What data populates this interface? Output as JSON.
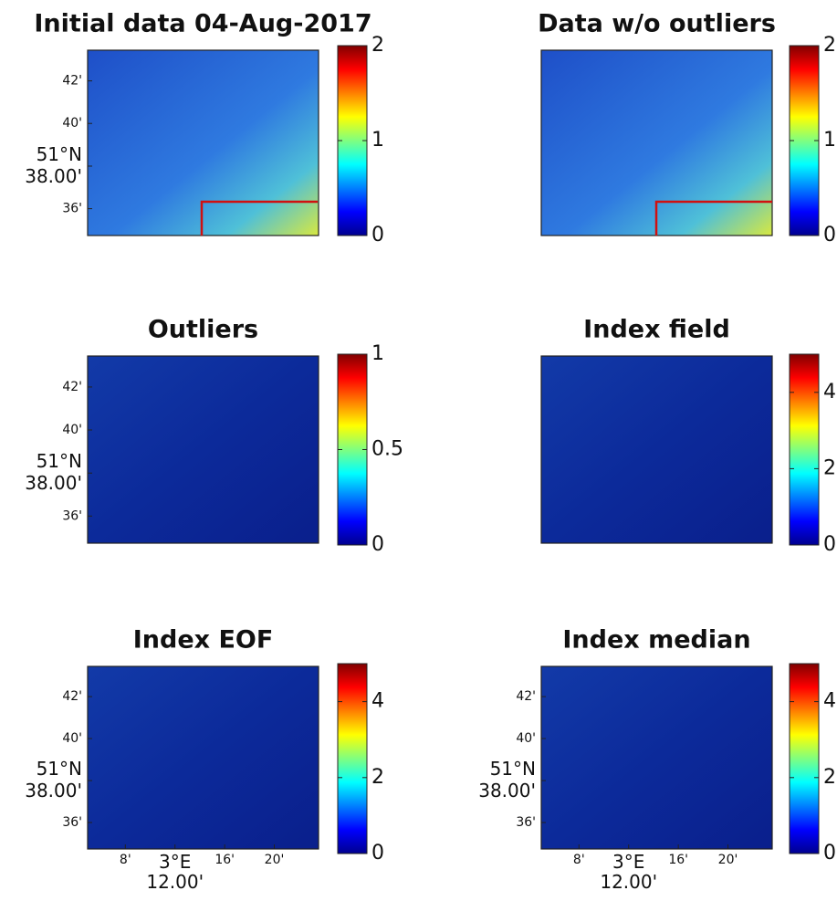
{
  "chart_data": [
    {
      "type": "map",
      "title": "Initial data 04-Aug-2017",
      "ylim": [
        51.579,
        51.724
      ],
      "yticks": [
        {
          "value": 51.7,
          "label": "42'"
        },
        {
          "value": 51.6667,
          "label": "40'"
        },
        {
          "value": 51.6333,
          "label": "51°N\n38.00'"
        },
        {
          "value": 51.6,
          "label": "36'"
        }
      ],
      "clim": [
        0,
        2
      ],
      "cticks": [
        0,
        1,
        2
      ]
    },
    {
      "type": "map",
      "title": "Data w/o outliers",
      "clim": [
        0,
        2
      ],
      "cticks": [
        0,
        1,
        2
      ]
    },
    {
      "type": "map",
      "title": "Outliers",
      "ylim": [
        51.579,
        51.724
      ],
      "yticks": [
        {
          "value": 51.7,
          "label": "42'"
        },
        {
          "value": 51.6667,
          "label": "40'"
        },
        {
          "value": 51.6333,
          "label": "51°N\n38.00'"
        },
        {
          "value": 51.6,
          "label": "36'"
        }
      ],
      "clim": [
        0,
        1
      ],
      "cticks": [
        0,
        0.5,
        1
      ]
    },
    {
      "type": "map",
      "title": "Index field",
      "clim": [
        0,
        5
      ],
      "cticks": [
        0,
        2,
        4
      ]
    },
    {
      "type": "map",
      "title": "Index EOF",
      "ylim": [
        51.579,
        51.724
      ],
      "yticks": [
        {
          "value": 51.7,
          "label": "42'"
        },
        {
          "value": 51.6667,
          "label": "40'"
        },
        {
          "value": 51.6333,
          "label": "51°N\n38.00'"
        },
        {
          "value": 51.6,
          "label": "36'"
        }
      ],
      "xlim": [
        3.0827,
        3.3927
      ],
      "xticks": [
        {
          "value": 3.1333,
          "label": "8'"
        },
        {
          "value": 3.2,
          "label": "3°E\n12.00'"
        },
        {
          "value": 3.2667,
          "label": "16'"
        },
        {
          "value": 3.3333,
          "label": "20'"
        }
      ],
      "clim": [
        0,
        5
      ],
      "cticks": [
        0,
        2,
        4
      ]
    },
    {
      "type": "map",
      "title": "Index median",
      "ylim": [
        51.579,
        51.724
      ],
      "yticks": [
        {
          "value": 51.7,
          "label": "42'"
        },
        {
          "value": 51.6667,
          "label": "40'"
        },
        {
          "value": 51.6333,
          "label": "51°N\n38.00'"
        },
        {
          "value": 51.6,
          "label": "36'"
        }
      ],
      "xlim": [
        3.0827,
        3.3927
      ],
      "xticks": [
        {
          "value": 3.1333,
          "label": "8'"
        },
        {
          "value": 3.2,
          "label": "3°E\n12.00'"
        },
        {
          "value": 3.2667,
          "label": "16'"
        },
        {
          "value": 3.3333,
          "label": "20'"
        }
      ],
      "clim": [
        0,
        5
      ],
      "cticks": [
        0,
        2,
        4
      ]
    }
  ]
}
